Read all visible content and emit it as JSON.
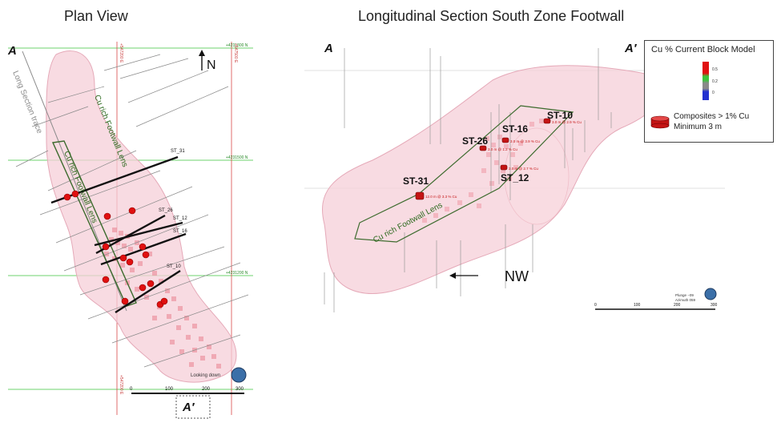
{
  "titles": {
    "plan": "Plan View",
    "section": "Longitudinal Section South Zone Footwall"
  },
  "plan": {
    "label_a": "A",
    "label_a_prime": "A′",
    "north": "N",
    "trace_label": "Long Section trace",
    "lens_label_1": "Cu rich Footwall Lens",
    "lens_label_2": "Cu rich Footwall Lens",
    "drillholes": [
      "ST_31",
      "ST_26",
      "ST_12",
      "ST_16",
      "ST_10"
    ],
    "easting_1": "+547200 E",
    "easting_2": "+547500 E",
    "northing_1": "+4231800 N",
    "northing_2": "+4231500 N",
    "northing_3": "+4231200 N",
    "scale": [
      "0",
      "100",
      "200",
      "300"
    ],
    "looking": "Looking down"
  },
  "section": {
    "label_a": "A",
    "label_a_prime": "A′",
    "direction": "NW",
    "lens_label": "Cu rich Footwall Lens",
    "holes": [
      {
        "id": "ST-10",
        "comp": "3.0 m @ 2.9 % Cu"
      },
      {
        "id": "ST-16",
        "comp": "3.0 m @ 3.9 % Cu"
      },
      {
        "id": "ST-26",
        "comp": "3.0 m @ 1.2 % Cu"
      },
      {
        "id": "ST_12",
        "comp": "3.0 m @ 2.7 % Cu"
      },
      {
        "id": "ST-31",
        "comp": "12.0 m @ 3.3 % Cu"
      }
    ],
    "scale": [
      "0",
      "100",
      "200",
      "300"
    ],
    "plunge": "Plunge −09",
    "azimuth": "Azimuth 059"
  },
  "legend": {
    "title": "Cu % Current Block Model",
    "ticks": [
      "0.5",
      "0.2",
      "0"
    ],
    "composites_line1": "Composites > 1% Cu",
    "composites_line2": "Minimum 3 m",
    "colors": {
      "red": "#e01010",
      "green": "#3cc43c",
      "grey": "#8a8a8a",
      "blue": "#2230d0"
    }
  }
}
